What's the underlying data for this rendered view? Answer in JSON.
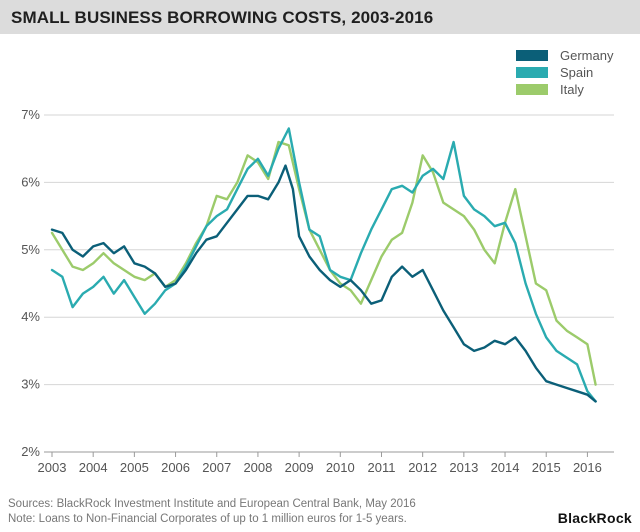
{
  "title": "SMALL BUSINESS BORROWING COSTS, 2003-2016",
  "footer": {
    "source": "Sources: BlackRock Investment Institute and European Central Bank, May 2016",
    "note": "Note: Loans to Non-Financial Corporates of up to 1 million euros for 1-5 years."
  },
  "brand": "BlackRock",
  "chart_data": {
    "type": "line",
    "title": "SMALL BUSINESS BORROWING COSTS, 2003-2016",
    "xlabel": "",
    "ylabel": "",
    "xlim": [
      2003,
      2016.5
    ],
    "ylim": [
      2,
      7
    ],
    "x_ticks": [
      "2003",
      "2004",
      "2005",
      "2006",
      "2007",
      "2008",
      "2009",
      "2010",
      "2011",
      "2012",
      "2013",
      "2014",
      "2015",
      "2016"
    ],
    "y_ticks": [
      "2%",
      "3%",
      "4%",
      "5%",
      "6%",
      "7%"
    ],
    "grid": "horizontal",
    "legend": "top-right",
    "series": [
      {
        "name": "Germany",
        "color": "#0b5f78",
        "points": [
          [
            2003,
            5.3
          ],
          [
            2003.25,
            5.25
          ],
          [
            2003.5,
            5.0
          ],
          [
            2003.75,
            4.9
          ],
          [
            2004,
            5.05
          ],
          [
            2004.25,
            5.1
          ],
          [
            2004.5,
            4.95
          ],
          [
            2004.75,
            5.05
          ],
          [
            2005,
            4.8
          ],
          [
            2005.25,
            4.75
          ],
          [
            2005.5,
            4.65
          ],
          [
            2005.75,
            4.45
          ],
          [
            2006,
            4.5
          ],
          [
            2006.25,
            4.7
          ],
          [
            2006.5,
            4.95
          ],
          [
            2006.75,
            5.15
          ],
          [
            2007,
            5.2
          ],
          [
            2007.25,
            5.4
          ],
          [
            2007.5,
            5.6
          ],
          [
            2007.75,
            5.8
          ],
          [
            2008,
            5.8
          ],
          [
            2008.25,
            5.75
          ],
          [
            2008.5,
            6.0
          ],
          [
            2008.67,
            6.25
          ],
          [
            2008.85,
            5.9
          ],
          [
            2009,
            5.2
          ],
          [
            2009.25,
            4.9
          ],
          [
            2009.5,
            4.7
          ],
          [
            2009.75,
            4.55
          ],
          [
            2010,
            4.45
          ],
          [
            2010.25,
            4.55
          ],
          [
            2010.5,
            4.4
          ],
          [
            2010.75,
            4.2
          ],
          [
            2011,
            4.25
          ],
          [
            2011.25,
            4.6
          ],
          [
            2011.5,
            4.75
          ],
          [
            2011.75,
            4.6
          ],
          [
            2012,
            4.7
          ],
          [
            2012.25,
            4.4
          ],
          [
            2012.5,
            4.1
          ],
          [
            2012.75,
            3.85
          ],
          [
            2013,
            3.6
          ],
          [
            2013.25,
            3.5
          ],
          [
            2013.5,
            3.55
          ],
          [
            2013.75,
            3.65
          ],
          [
            2014,
            3.6
          ],
          [
            2014.25,
            3.7
          ],
          [
            2014.5,
            3.5
          ],
          [
            2014.75,
            3.25
          ],
          [
            2015,
            3.05
          ],
          [
            2015.25,
            3.0
          ],
          [
            2015.5,
            2.95
          ],
          [
            2015.75,
            2.9
          ],
          [
            2016,
            2.85
          ],
          [
            2016.2,
            2.75
          ]
        ]
      },
      {
        "name": "Spain",
        "color": "#2aabb0",
        "points": [
          [
            2003,
            4.7
          ],
          [
            2003.25,
            4.6
          ],
          [
            2003.5,
            4.15
          ],
          [
            2003.75,
            4.35
          ],
          [
            2004,
            4.45
          ],
          [
            2004.25,
            4.6
          ],
          [
            2004.5,
            4.35
          ],
          [
            2004.75,
            4.55
          ],
          [
            2005,
            4.3
          ],
          [
            2005.25,
            4.05
          ],
          [
            2005.5,
            4.2
          ],
          [
            2005.75,
            4.4
          ],
          [
            2006,
            4.5
          ],
          [
            2006.25,
            4.75
          ],
          [
            2006.5,
            5.05
          ],
          [
            2006.75,
            5.35
          ],
          [
            2007,
            5.5
          ],
          [
            2007.25,
            5.6
          ],
          [
            2007.5,
            5.9
          ],
          [
            2007.75,
            6.2
          ],
          [
            2008,
            6.35
          ],
          [
            2008.25,
            6.1
          ],
          [
            2008.5,
            6.5
          ],
          [
            2008.75,
            6.8
          ],
          [
            2009,
            6.0
          ],
          [
            2009.25,
            5.3
          ],
          [
            2009.5,
            5.2
          ],
          [
            2009.75,
            4.7
          ],
          [
            2010,
            4.6
          ],
          [
            2010.25,
            4.55
          ],
          [
            2010.5,
            4.95
          ],
          [
            2010.75,
            5.3
          ],
          [
            2011,
            5.6
          ],
          [
            2011.25,
            5.9
          ],
          [
            2011.5,
            5.95
          ],
          [
            2011.75,
            5.85
          ],
          [
            2012,
            6.1
          ],
          [
            2012.25,
            6.2
          ],
          [
            2012.5,
            6.05
          ],
          [
            2012.75,
            6.6
          ],
          [
            2013,
            5.8
          ],
          [
            2013.25,
            5.6
          ],
          [
            2013.5,
            5.5
          ],
          [
            2013.75,
            5.35
          ],
          [
            2014,
            5.4
          ],
          [
            2014.25,
            5.1
          ],
          [
            2014.5,
            4.5
          ],
          [
            2014.75,
            4.05
          ],
          [
            2015,
            3.7
          ],
          [
            2015.25,
            3.5
          ],
          [
            2015.5,
            3.4
          ],
          [
            2015.75,
            3.3
          ],
          [
            2016,
            2.9
          ],
          [
            2016.2,
            2.75
          ]
        ]
      },
      {
        "name": "Italy",
        "color": "#9ccb6b",
        "points": [
          [
            2003,
            5.25
          ],
          [
            2003.25,
            5.0
          ],
          [
            2003.5,
            4.75
          ],
          [
            2003.75,
            4.7
          ],
          [
            2004,
            4.8
          ],
          [
            2004.25,
            4.95
          ],
          [
            2004.5,
            4.8
          ],
          [
            2004.75,
            4.7
          ],
          [
            2005,
            4.6
          ],
          [
            2005.25,
            4.55
          ],
          [
            2005.5,
            4.65
          ],
          [
            2005.75,
            4.45
          ],
          [
            2006,
            4.55
          ],
          [
            2006.25,
            4.8
          ],
          [
            2006.5,
            5.1
          ],
          [
            2006.75,
            5.35
          ],
          [
            2007,
            5.8
          ],
          [
            2007.25,
            5.75
          ],
          [
            2007.5,
            6.0
          ],
          [
            2007.75,
            6.4
          ],
          [
            2008,
            6.3
          ],
          [
            2008.25,
            6.05
          ],
          [
            2008.5,
            6.6
          ],
          [
            2008.75,
            6.55
          ],
          [
            2009,
            5.9
          ],
          [
            2009.25,
            5.3
          ],
          [
            2009.5,
            5.0
          ],
          [
            2009.75,
            4.7
          ],
          [
            2010,
            4.5
          ],
          [
            2010.25,
            4.4
          ],
          [
            2010.5,
            4.2
          ],
          [
            2010.75,
            4.55
          ],
          [
            2011,
            4.9
          ],
          [
            2011.25,
            5.15
          ],
          [
            2011.5,
            5.25
          ],
          [
            2011.75,
            5.7
          ],
          [
            2012,
            6.4
          ],
          [
            2012.25,
            6.15
          ],
          [
            2012.5,
            5.7
          ],
          [
            2012.75,
            5.6
          ],
          [
            2013,
            5.5
          ],
          [
            2013.25,
            5.3
          ],
          [
            2013.5,
            5.0
          ],
          [
            2013.75,
            4.8
          ],
          [
            2014,
            5.4
          ],
          [
            2014.25,
            5.9
          ],
          [
            2014.5,
            5.2
          ],
          [
            2014.75,
            4.5
          ],
          [
            2015,
            4.4
          ],
          [
            2015.25,
            3.95
          ],
          [
            2015.5,
            3.8
          ],
          [
            2015.75,
            3.7
          ],
          [
            2016,
            3.6
          ],
          [
            2016.2,
            3.0
          ]
        ]
      }
    ]
  }
}
